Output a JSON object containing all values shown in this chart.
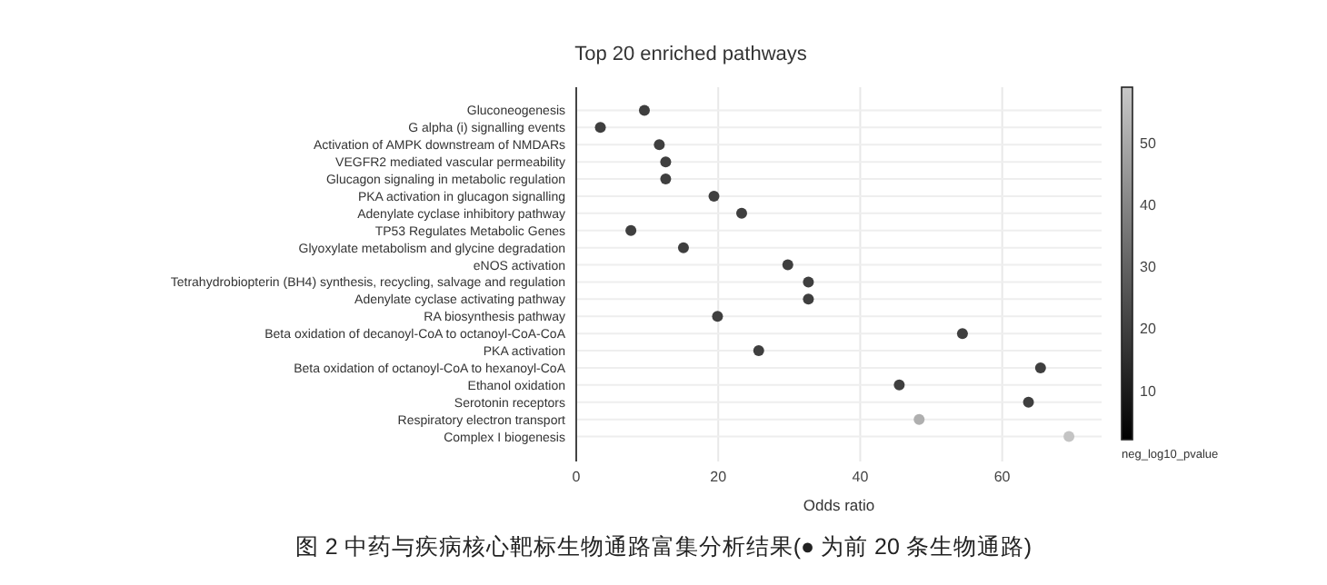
{
  "chart_data": {
    "type": "scatter",
    "title": "Top 20 enriched pathways",
    "xlabel": "Odds ratio",
    "clabel": "neg_log10_pvalue",
    "annotations": [
      "图 2 中药与疾病核心靶标生物通路富集分析结果(● 为前 20 条生物通路)"
    ],
    "orientation": "horizontal",
    "categories": [
      "Gluconeogenesis",
      "G alpha (i) signalling events",
      "Activation of AMPK downstream of NMDARs",
      "VEGFR2 mediated vascular permeability",
      "Glucagon signaling in metabolic regulation",
      "PKA activation in glucagon signalling",
      "Adenylate cyclase inhibitory pathway",
      "TP53 Regulates Metabolic Genes",
      "Glyoxylate metabolism and glycine degradation",
      "eNOS activation",
      "Tetrahydrobiopterin (BH4) synthesis, recycling, salvage and regulation",
      "Adenylate cyclase activating pathway",
      "RA biosynthesis pathway",
      "Beta oxidation of decanoyl-CoA to octanoyl-CoA-CoA",
      "PKA activation",
      "Beta oxidation of octanoyl-CoA to hexanoyl-CoA",
      "Ethanol oxidation",
      "Serotonin receptors",
      "Respiratory electron transport",
      "Complex I biogenesis"
    ],
    "values": [
      9.6,
      3.4,
      11.7,
      12.6,
      12.6,
      19.4,
      23.3,
      7.7,
      15.1,
      29.8,
      32.7,
      32.7,
      19.9,
      54.4,
      25.7,
      65.4,
      45.5,
      63.7,
      48.3,
      69.4
    ],
    "cvalues": [
      20,
      20,
      20,
      20,
      20,
      20,
      20,
      20,
      20,
      20,
      20,
      20,
      20,
      20,
      20,
      20,
      20,
      20,
      52,
      58
    ],
    "xlim": [
      0,
      74
    ],
    "xticks": [
      0,
      20,
      40,
      60
    ],
    "clim": [
      2,
      59
    ],
    "cticks": [
      10,
      20,
      30,
      40,
      50
    ],
    "grid": true,
    "marker": "circle"
  }
}
